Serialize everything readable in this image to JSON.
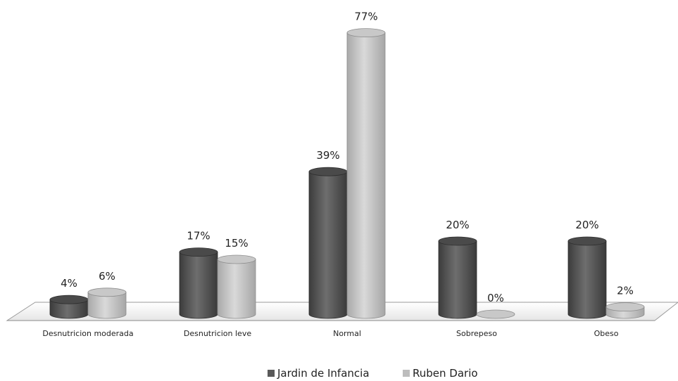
{
  "chart_data": {
    "type": "bar",
    "categories": [
      "Desnutricion moderada",
      "Desnutricion leve",
      "Normal",
      "Sobrepeso",
      "Obeso"
    ],
    "series": [
      {
        "name": "Jardin de Infancia",
        "values": [
          4,
          17,
          39,
          20,
          20
        ],
        "labels": [
          "4%",
          "17%",
          "39%",
          "20%",
          "20%"
        ],
        "color": "#5a5a5a"
      },
      {
        "name": "Ruben Dario",
        "values": [
          6,
          15,
          77,
          0,
          2
        ],
        "labels": [
          "6%",
          "15%",
          "77%",
          "0%",
          "2%"
        ],
        "color": "#bdbdbd"
      }
    ],
    "ylim": [
      0,
      80
    ],
    "grid": false,
    "legend_position": "bottom",
    "bar_style": "3d-cylinder"
  }
}
